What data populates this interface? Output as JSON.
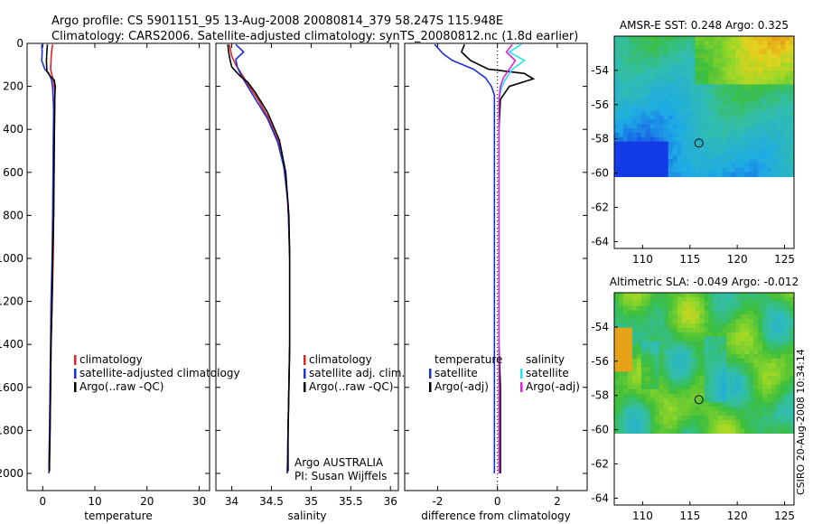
{
  "header": {
    "line1": "Argo profile: CS 5901151_95 13-Aug-2008 20080814_379 58.247S 115.948E",
    "line2": "Climatology: CARS2006. Satellite-adjusted climatology: synTS_20080812.nc (1.8d earlier)"
  },
  "footer_stamp": "CSIRO 20-Aug-2008 10:34:14",
  "colors": {
    "red": "#dd2222",
    "blue": "#1f2fd8",
    "black": "#000000",
    "cyan": "#22e4ee",
    "magenta": "#e020e0"
  },
  "chart_data": [
    {
      "id": "temperature",
      "type": "line",
      "xlabel": "temperature",
      "xlim": [
        -3,
        32
      ],
      "ylim": [
        2080,
        0
      ],
      "xticks": [
        0,
        10,
        20,
        30
      ],
      "yticks": [
        0,
        200,
        400,
        600,
        800,
        1000,
        1200,
        1400,
        1600,
        1800,
        2000
      ],
      "legend": [
        "climatology",
        "satellite-adjusted climatology",
        "Argo(..raw -QC)"
      ],
      "series": [
        {
          "name": "climatology",
          "color": "red",
          "x": [
            1.9,
            1.7,
            1.6,
            1.5,
            1.8,
            2.1,
            2.3,
            2.3,
            2.2,
            2.1,
            2.0,
            1.8,
            1.6,
            1.5,
            1.4,
            1.3,
            1.2
          ],
          "y": [
            5,
            40,
            80,
            120,
            150,
            180,
            220,
            300,
            500,
            800,
            1000,
            1200,
            1400,
            1600,
            1800,
            1950,
            2000
          ]
        },
        {
          "name": "satellite-adjusted climatology",
          "color": "blue",
          "x": [
            -0.2,
            -0.1,
            -0.2,
            0.4,
            1.2,
            1.7,
            1.9,
            2.1,
            2.0,
            1.9,
            1.8,
            1.6,
            1.5,
            1.4,
            1.3,
            1.2,
            1.2
          ],
          "y": [
            5,
            40,
            80,
            120,
            140,
            170,
            210,
            300,
            500,
            800,
            1000,
            1200,
            1400,
            1600,
            1800,
            1950,
            2000
          ]
        },
        {
          "name": "Argo(..raw -QC)",
          "color": "black",
          "x": [
            0.9,
            0.8,
            0.7,
            0.8,
            1.5,
            2.2,
            2.4,
            2.3,
            2.2,
            2.1,
            1.9,
            1.8,
            1.6,
            1.5,
            1.4,
            1.3,
            1.3
          ],
          "y": [
            5,
            40,
            80,
            130,
            155,
            170,
            200,
            260,
            500,
            800,
            1000,
            1200,
            1400,
            1600,
            1800,
            1950,
            1990
          ]
        }
      ]
    },
    {
      "id": "salinity",
      "type": "line",
      "xlabel": "salinity",
      "xlim": [
        33.8,
        36.1
      ],
      "ylim": [
        2080,
        0
      ],
      "xticks": [
        34,
        34.5,
        35,
        35.5,
        36
      ],
      "xticklabels": [
        "34",
        "34.5",
        "35",
        "35.5",
        "36"
      ],
      "yticks": [
        0,
        200,
        400,
        600,
        800,
        1000,
        1200,
        1400,
        1600,
        1800,
        2000
      ],
      "legend": [
        "climatology",
        "satellite adj. clim.",
        "Argo(..raw -QC)"
      ],
      "annotation": [
        "Argo AUSTRALIA",
        "PI: Susan Wijffels"
      ],
      "series": [
        {
          "name": "climatology",
          "color": "red",
          "x": [
            33.97,
            34.0,
            34.05,
            34.12,
            34.22,
            34.33,
            34.45,
            34.58,
            34.65,
            34.7,
            34.72,
            34.73,
            34.73,
            34.73,
            34.72,
            34.71,
            34.7
          ],
          "y": [
            5,
            60,
            100,
            140,
            200,
            260,
            340,
            450,
            560,
            700,
            850,
            1000,
            1200,
            1400,
            1600,
            1800,
            2000
          ]
        },
        {
          "name": "satellite adj. clim.",
          "color": "blue",
          "x": [
            34.05,
            34.15,
            34.05,
            34.07,
            34.12,
            34.2,
            34.3,
            34.45,
            34.58,
            34.66,
            34.71,
            34.73,
            34.73,
            34.73,
            34.72,
            34.71,
            34.7
          ],
          "y": [
            5,
            40,
            75,
            110,
            150,
            200,
            260,
            350,
            460,
            580,
            750,
            1000,
            1200,
            1400,
            1600,
            1800,
            2000
          ]
        },
        {
          "name": "Argo(..raw -QC)",
          "color": "black",
          "x": [
            33.95,
            33.96,
            33.98,
            34.0,
            34.1,
            34.2,
            34.3,
            34.45,
            34.6,
            34.68,
            34.72,
            34.73,
            34.73,
            34.73,
            34.72,
            34.71,
            34.71
          ],
          "y": [
            5,
            40,
            80,
            110,
            150,
            180,
            230,
            320,
            450,
            600,
            800,
            1000,
            1200,
            1400,
            1600,
            1800,
            1990
          ]
        }
      ]
    },
    {
      "id": "difference",
      "type": "line",
      "xlabel": "difference from climatology",
      "xlim": [
        -3.1,
        3.0
      ],
      "ylim": [
        2080,
        0
      ],
      "xticks": [
        -2,
        0,
        2
      ],
      "yticks": [
        0,
        200,
        400,
        600,
        800,
        1000,
        1200,
        1400,
        1600,
        1800,
        2000
      ],
      "legend_temperature": [
        "temperature",
        "satellite",
        "Argo(-adj)"
      ],
      "legend_salinity": [
        "salinity",
        "satellite",
        "Argo(-adj)"
      ],
      "series": [
        {
          "name": "temperature satellite",
          "color": "blue",
          "x": [
            -2.1,
            -1.8,
            -1.5,
            -0.8,
            -0.4,
            -0.2,
            -0.1,
            -0.1,
            -0.1,
            -0.1,
            -0.1,
            -0.1,
            -0.1,
            -0.1,
            -0.1,
            -0.1
          ],
          "y": [
            5,
            50,
            80,
            120,
            160,
            200,
            240,
            300,
            400,
            600,
            800,
            1000,
            1400,
            1600,
            1800,
            2000
          ]
        },
        {
          "name": "temperature Argo(-adj)",
          "color": "black",
          "x": [
            -1.1,
            -1.2,
            -0.9,
            -0.3,
            0.9,
            1.2,
            0.4,
            0.1,
            0.05,
            0.05,
            0.05,
            0.05,
            0.05,
            0.1,
            0.1,
            0.1
          ],
          "y": [
            5,
            40,
            80,
            120,
            140,
            165,
            200,
            260,
            400,
            600,
            800,
            1000,
            1400,
            1600,
            1800,
            2000
          ]
        },
        {
          "name": "salinity satellite",
          "color": "cyan",
          "x": [
            0.8,
            0.4,
            0.9,
            0.5,
            0.3,
            0.15,
            0.05,
            0.05,
            0.05,
            0.05,
            0.05,
            0.05,
            0.05,
            0.05,
            0.05,
            0.05
          ],
          "y": [
            5,
            40,
            80,
            120,
            160,
            200,
            260,
            340,
            420,
            600,
            800,
            1000,
            1400,
            1600,
            1800,
            2000
          ]
        },
        {
          "name": "salinity Argo(-adj)",
          "color": "magenta",
          "x": [
            0.5,
            0.3,
            0.6,
            0.4,
            0.2,
            0.1,
            0.05,
            0.05,
            0.05,
            0.05,
            0.05,
            0.05,
            0.05,
            0.05,
            0.05,
            0.05
          ],
          "y": [
            5,
            40,
            80,
            120,
            160,
            200,
            260,
            340,
            420,
            600,
            800,
            1000,
            1400,
            1600,
            1800,
            2000
          ]
        }
      ]
    },
    {
      "id": "sst_map",
      "type": "heatmap",
      "title": "AMSR-E SST: 0.248 Argo: 0.325",
      "xlim": [
        107,
        126
      ],
      "ylim": [
        -64.4,
        -52.0
      ],
      "xticks": [
        110,
        115,
        120,
        125
      ],
      "yticks": [
        -54,
        -56,
        -58,
        -60,
        -62,
        -64
      ],
      "data_extent_ylim": [
        -60.2,
        -52.0
      ],
      "marker": {
        "lon": 115.948,
        "lat": -58.247
      }
    },
    {
      "id": "sla_map",
      "type": "heatmap",
      "title": "Altimetric SLA: -0.049 Argo: -0.012",
      "xlim": [
        107,
        126
      ],
      "ylim": [
        -64.4,
        -52.0
      ],
      "xticks": [
        110,
        115,
        120,
        125
      ],
      "yticks": [
        -54,
        -56,
        -58,
        -60,
        -62,
        -64
      ],
      "data_extent_ylim": [
        -60.2,
        -52.0
      ],
      "marker": {
        "lon": 115.948,
        "lat": -58.247
      }
    }
  ]
}
